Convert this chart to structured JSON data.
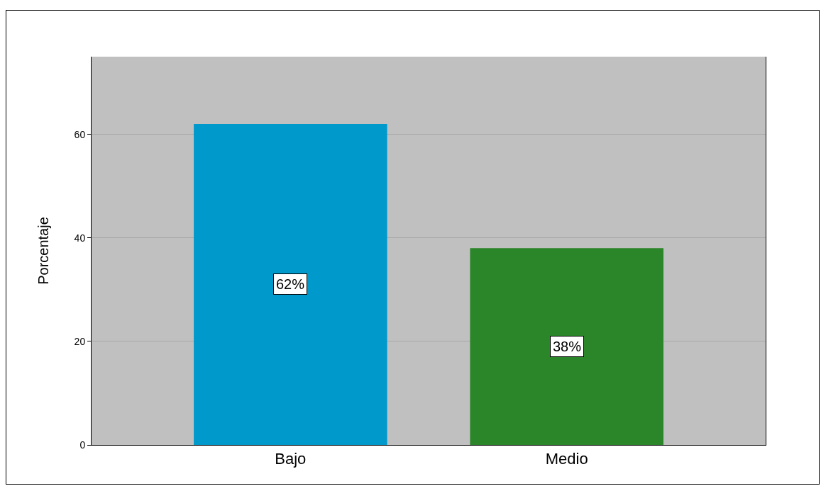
{
  "chart_data": {
    "type": "bar",
    "ylabel": "Porcentaje",
    "categories": [
      "Bajo",
      "Medio"
    ],
    "values": [
      62,
      38
    ],
    "colors": [
      "#0099cc",
      "#2a8629"
    ],
    "value_labels": [
      "62%",
      "38%"
    ],
    "ylim": [
      0,
      75
    ],
    "yticks": [
      0,
      20,
      40,
      60
    ],
    "grid": "y"
  }
}
